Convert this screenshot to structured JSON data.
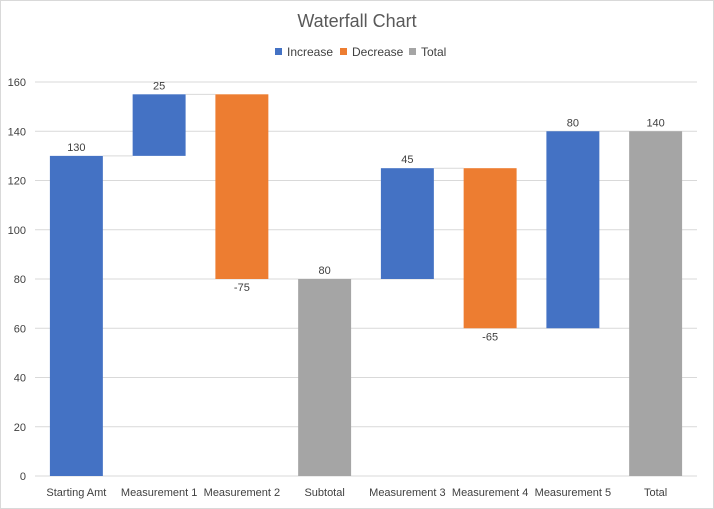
{
  "chart_data": {
    "type": "waterfall",
    "title": "Waterfall Chart",
    "xlabel": "",
    "ylabel": "",
    "ylim": [
      0,
      160
    ],
    "yticks": [
      0,
      20,
      40,
      60,
      80,
      100,
      120,
      140,
      160
    ],
    "grid": true,
    "legend_position": "top",
    "legend": [
      {
        "name": "Increase",
        "color": "#4472c4"
      },
      {
        "name": "Decrease",
        "color": "#ed7d31"
      },
      {
        "name": "Total",
        "color": "#a5a5a5"
      }
    ],
    "categories": [
      "Starting Amt",
      "Measurement 1",
      "Measurement 2",
      "Subtotal",
      "Measurement 3",
      "Measurement 4",
      "Measurement 5",
      "Total"
    ],
    "values": [
      130,
      25,
      -75,
      80,
      45,
      -65,
      80,
      140
    ],
    "kinds": [
      "increase",
      "increase",
      "decrease",
      "total",
      "increase",
      "decrease",
      "increase",
      "total"
    ],
    "labels": [
      "130",
      "25",
      "-75",
      "80",
      "45",
      "-65",
      "80",
      "140"
    ],
    "colors": {
      "increase": "#4472c4",
      "decrease": "#ed7d31",
      "total": "#a5a5a5",
      "grid": "#d9d9d9",
      "connector": "#d9d9d9"
    }
  }
}
